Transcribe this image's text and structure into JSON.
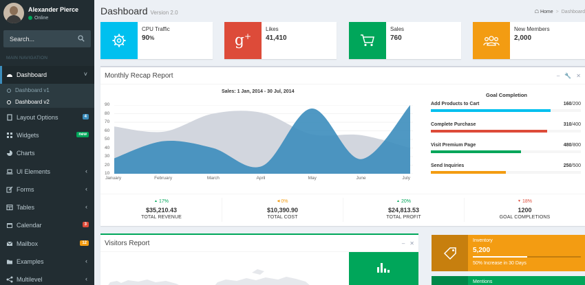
{
  "user": {
    "name": "Alexander Pierce",
    "status": "Online"
  },
  "search": {
    "placeholder": "Search..."
  },
  "nav": {
    "header": "MAIN NAVIGATION",
    "items": [
      {
        "label": "Dashboard",
        "icon": "dashboard-icon",
        "active": true
      },
      {
        "label": "Layout Options",
        "icon": "files-icon",
        "badge": "4",
        "badge_color": "#3c8dbc"
      },
      {
        "label": "Widgets",
        "icon": "th-icon",
        "badge": "new",
        "badge_color": "#00a65a"
      },
      {
        "label": "Charts",
        "icon": "pie-chart-icon"
      },
      {
        "label": "UI Elements",
        "icon": "laptop-icon"
      },
      {
        "label": "Forms",
        "icon": "edit-icon"
      },
      {
        "label": "Tables",
        "icon": "table-icon"
      },
      {
        "label": "Calendar",
        "icon": "calendar-icon",
        "badge": "3",
        "badge_color": "#dd4b39"
      },
      {
        "label": "Mailbox",
        "icon": "envelope-icon",
        "badge": "12",
        "badge_color": "#f39c12"
      },
      {
        "label": "Examples",
        "icon": "folder-icon"
      },
      {
        "label": "Multilevel",
        "icon": "share-icon"
      }
    ],
    "submenu": [
      {
        "label": "Dashboard v1"
      },
      {
        "label": "Dashboard v2"
      }
    ]
  },
  "header": {
    "title": "Dashboard",
    "subtitle": "Version 2.0"
  },
  "breadcrumb": {
    "home": "Home",
    "current": "Dashboard"
  },
  "info_boxes": [
    {
      "label": "CPU Traffic",
      "value": "90",
      "suffix": "%",
      "color": "#00c0ef",
      "icon": "gear-icon"
    },
    {
      "label": "Likes",
      "value": "41,410",
      "color": "#dd4b39",
      "icon": "google-plus-icon"
    },
    {
      "label": "Sales",
      "value": "760",
      "color": "#00a65a",
      "icon": "shopping-cart-icon"
    },
    {
      "label": "New Members",
      "value": "2,000",
      "color": "#f39c12",
      "icon": "users-icon"
    }
  ],
  "recap": {
    "title": "Monthly Recap Report",
    "goal_title": "Goal Completion",
    "goals": [
      {
        "name": "Add Products to Cart",
        "value": "160",
        "total": "/200",
        "fraction": 0.8,
        "color": "#00c0ef"
      },
      {
        "name": "Complete Purchase",
        "value": "310",
        "total": "/400",
        "fraction": 0.775,
        "color": "#dd4b39"
      },
      {
        "name": "Visit Premium Page",
        "value": "480",
        "total": "/800",
        "fraction": 0.6,
        "color": "#00a65a"
      },
      {
        "name": "Send Inquiries",
        "value": "250",
        "total": "/500",
        "fraction": 0.5,
        "color": "#f39c12"
      }
    ],
    "stats": [
      {
        "pct": "17%",
        "dir": "up",
        "color": "#00a65a",
        "value": "$35,210.43",
        "label": "TOTAL REVENUE"
      },
      {
        "pct": "0%",
        "dir": "left",
        "color": "#f39c12",
        "value": "$10,390.90",
        "label": "TOTAL COST"
      },
      {
        "pct": "20%",
        "dir": "up",
        "color": "#00a65a",
        "value": "$24,813.53",
        "label": "TOTAL PROFIT"
      },
      {
        "pct": "18%",
        "dir": "down",
        "color": "#dd4b39",
        "value": "1200",
        "label": "GOAL COMPLETIONS"
      }
    ]
  },
  "chart_data": {
    "type": "area",
    "title": "Sales: 1 Jan, 2014 - 30 Jul, 2014",
    "categories": [
      "January",
      "February",
      "March",
      "April",
      "May",
      "June",
      "July"
    ],
    "yticks": [
      10,
      20,
      30,
      40,
      50,
      60,
      70,
      80,
      90
    ],
    "ylim": [
      10,
      90
    ],
    "series": [
      {
        "values": [
          65,
          59,
          80,
          81,
          56,
          55,
          40
        ],
        "color": "#d2d6de"
      },
      {
        "values": [
          28,
          48,
          40,
          19,
          86,
          27,
          90
        ],
        "color": "#3c8dbc"
      }
    ]
  },
  "visitors": {
    "title": "Visitors Report"
  },
  "inventory": {
    "label": "Inventory",
    "value": "5,200",
    "description": "50% Increase in 30 Days",
    "progress": 0.5
  },
  "mentions": {
    "label": "Mentions"
  }
}
